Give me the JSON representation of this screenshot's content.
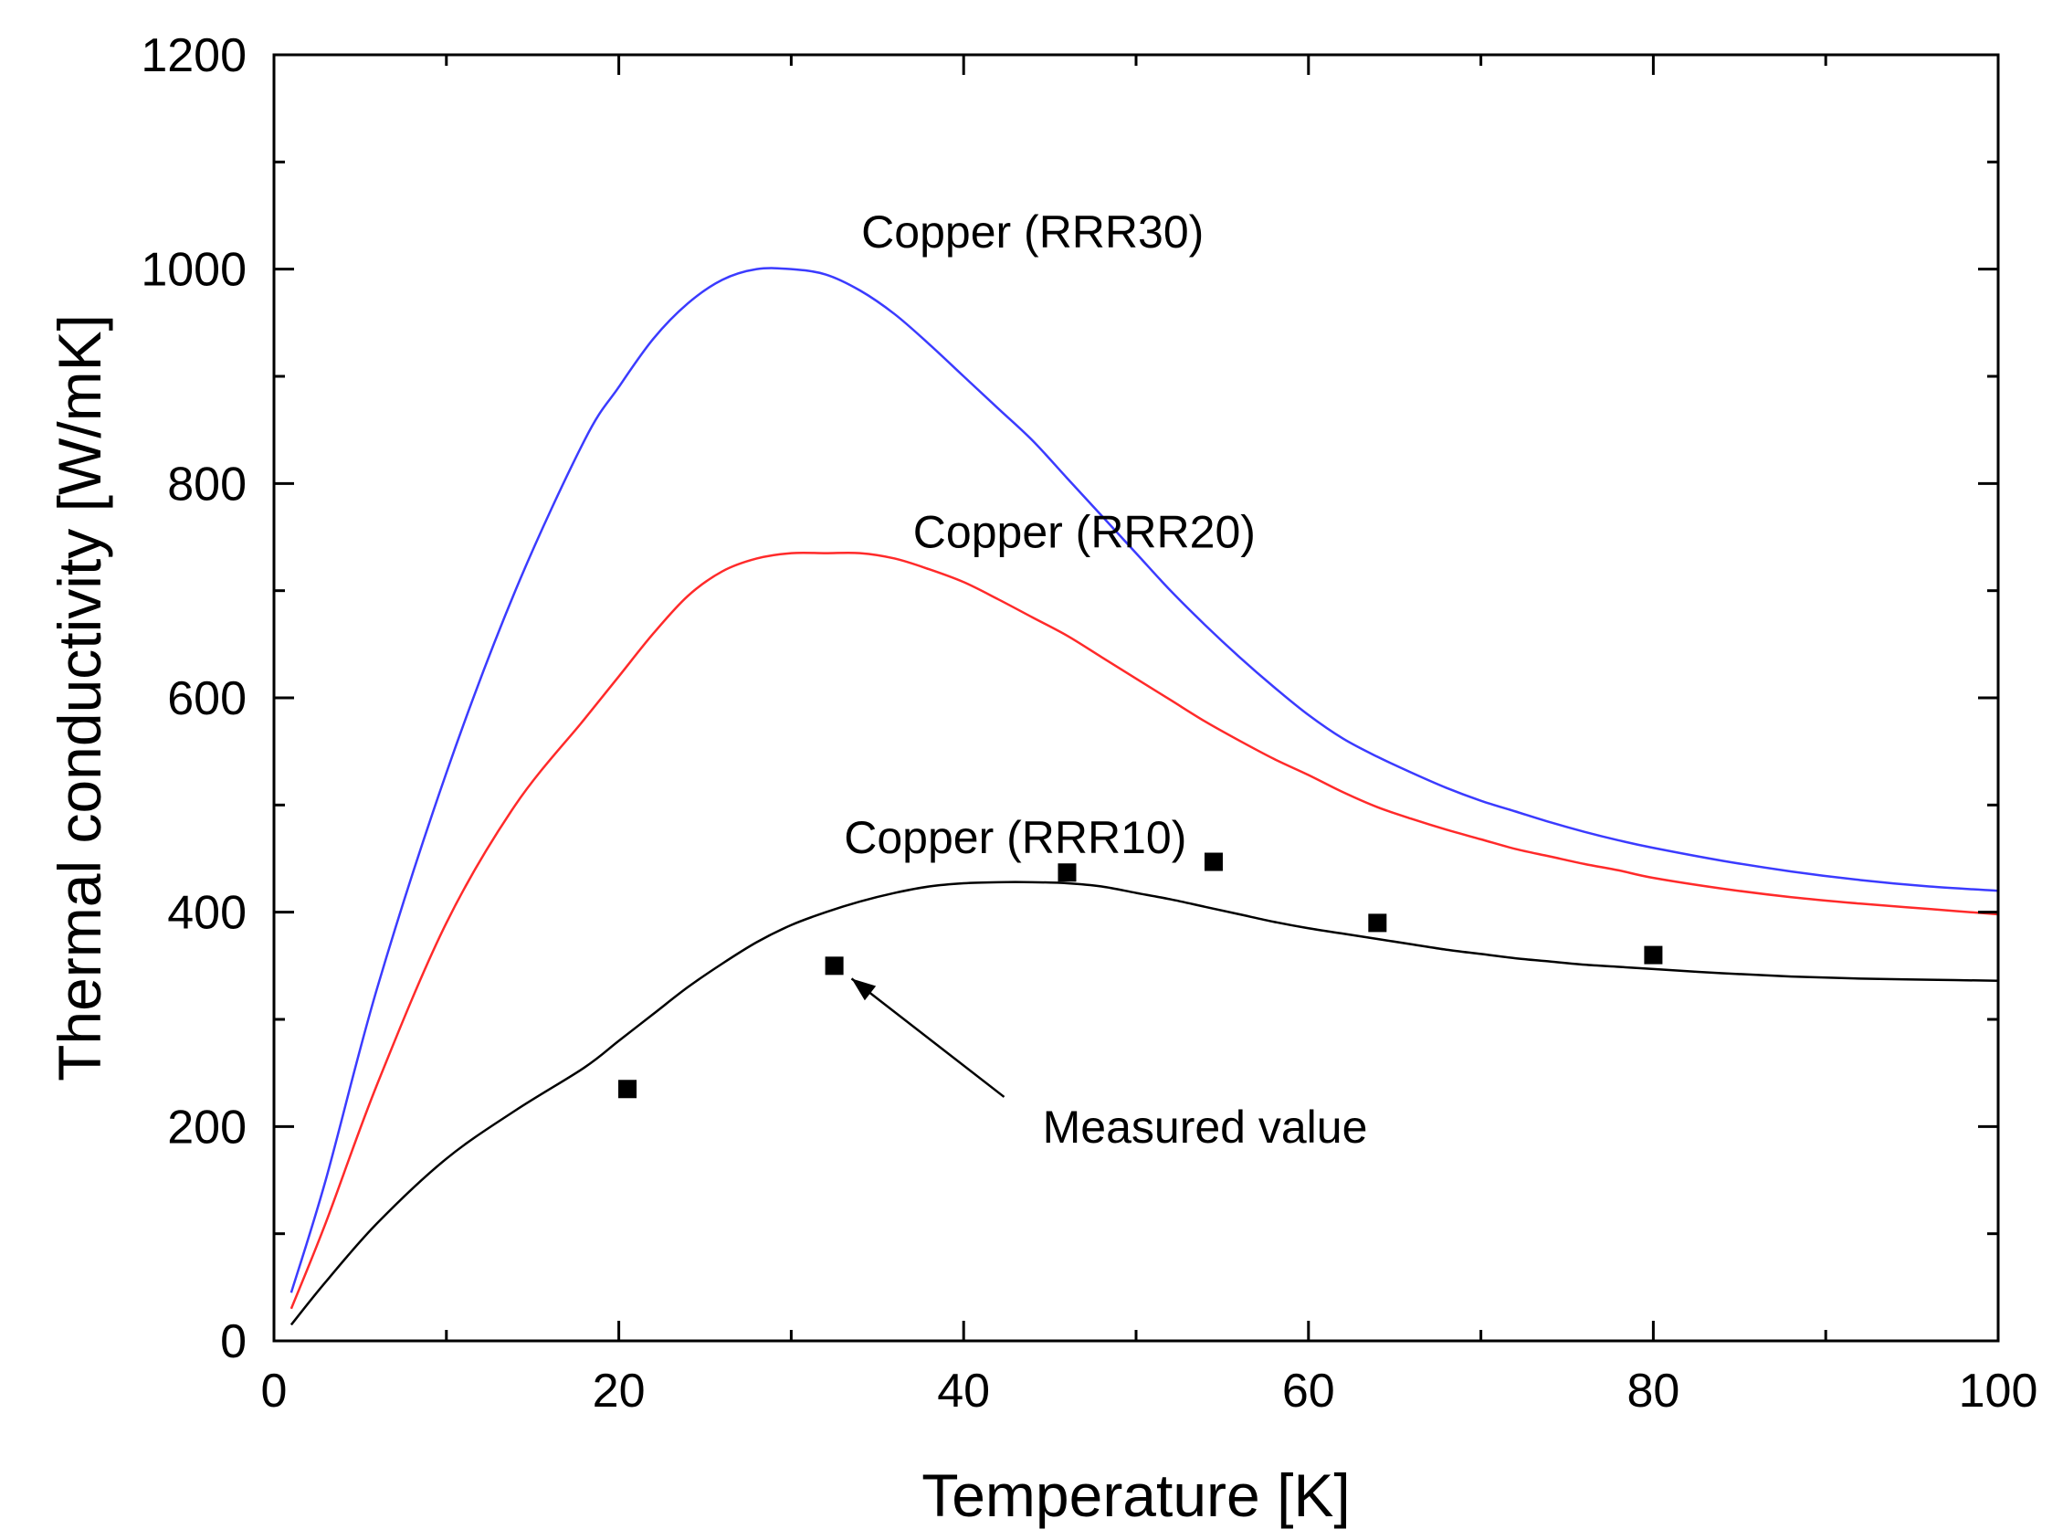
{
  "chart_data": {
    "type": "line",
    "title": "",
    "xlabel": "Temperature [K]",
    "ylabel": "Thermal conductivity [W/mK]",
    "xlim": [
      0,
      100
    ],
    "ylim": [
      0,
      1200
    ],
    "x_ticks": [
      0,
      20,
      40,
      60,
      80,
      100
    ],
    "y_ticks": [
      0,
      200,
      400,
      600,
      800,
      1000,
      1200
    ],
    "x_tick_labels": [
      "0",
      "20",
      "40",
      "60",
      "80",
      "100"
    ],
    "y_tick_labels": [
      "0",
      "200",
      "400",
      "600",
      "800",
      "1000",
      "1200"
    ],
    "grid": false,
    "series": [
      {
        "name": "Copper (RRR30)",
        "color": "#3b3bff",
        "x": [
          1,
          3,
          6,
          10,
          14,
          18,
          20,
          22,
          24,
          26,
          28,
          30,
          32,
          34,
          36,
          38,
          40,
          42,
          44,
          46,
          48,
          50,
          52,
          54,
          56,
          58,
          60,
          62,
          64,
          66,
          68,
          70,
          72,
          74,
          76,
          78,
          80,
          84,
          88,
          92,
          96,
          100
        ],
        "values": [
          45,
          150,
          330,
          530,
          700,
          840,
          890,
          935,
          968,
          990,
          1000,
          1000,
          995,
          980,
          958,
          930,
          900,
          870,
          840,
          805,
          770,
          735,
          700,
          668,
          638,
          610,
          584,
          562,
          545,
          530,
          516,
          504,
          494,
          484,
          475,
          467,
          460,
          448,
          438,
          430,
          424,
          420
        ]
      },
      {
        "name": "Copper (RRR20)",
        "color": "#ff2a2a",
        "x": [
          1,
          3,
          6,
          10,
          14,
          18,
          20,
          22,
          24,
          26,
          28,
          30,
          32,
          34,
          36,
          38,
          40,
          42,
          44,
          46,
          48,
          50,
          52,
          54,
          56,
          58,
          60,
          62,
          64,
          66,
          68,
          70,
          72,
          74,
          76,
          78,
          80,
          84,
          88,
          92,
          96,
          100
        ],
        "values": [
          30,
          110,
          240,
          390,
          500,
          580,
          620,
          660,
          695,
          718,
          730,
          735,
          735,
          735,
          730,
          720,
          708,
          692,
          675,
          658,
          638,
          618,
          598,
          578,
          560,
          543,
          528,
          512,
          498,
          487,
          477,
          468,
          459,
          452,
          445,
          439,
          432,
          422,
          414,
          408,
          403,
          398
        ]
      },
      {
        "name": "Copper (RRR10)",
        "color": "#000000",
        "x": [
          1,
          3,
          6,
          10,
          14,
          18,
          20,
          22,
          24,
          26,
          28,
          30,
          32,
          34,
          36,
          38,
          40,
          42,
          44,
          46,
          48,
          50,
          52,
          54,
          56,
          58,
          60,
          62,
          64,
          66,
          68,
          70,
          72,
          74,
          76,
          78,
          80,
          84,
          88,
          92,
          96,
          100
        ],
        "values": [
          15,
          55,
          110,
          170,
          215,
          255,
          280,
          305,
          330,
          352,
          372,
          388,
          400,
          410,
          418,
          424,
          427,
          428,
          428,
          427,
          424,
          418,
          412,
          405,
          398,
          391,
          385,
          380,
          375,
          370,
          365,
          361,
          357,
          354,
          351,
          349,
          347,
          343,
          340,
          338,
          337,
          336
        ]
      },
      {
        "name": "Measured value",
        "type": "scatter",
        "marker": "square",
        "color": "#000000",
        "x": [
          20.5,
          32.5,
          46,
          54.5,
          64,
          80
        ],
        "values": [
          235,
          350,
          437,
          447,
          390,
          360
        ]
      }
    ],
    "annotations": [
      {
        "text": "Copper (RRR30)",
        "x": 44,
        "y": 1020
      },
      {
        "text": "Copper (RRR20)",
        "x": 47,
        "y": 740
      },
      {
        "text": "Copper (RRR10)",
        "x": 43,
        "y": 455
      },
      {
        "text": "Measured value",
        "x": 54,
        "y": 185,
        "arrow_to": [
          33.5,
          338
        ]
      }
    ]
  }
}
